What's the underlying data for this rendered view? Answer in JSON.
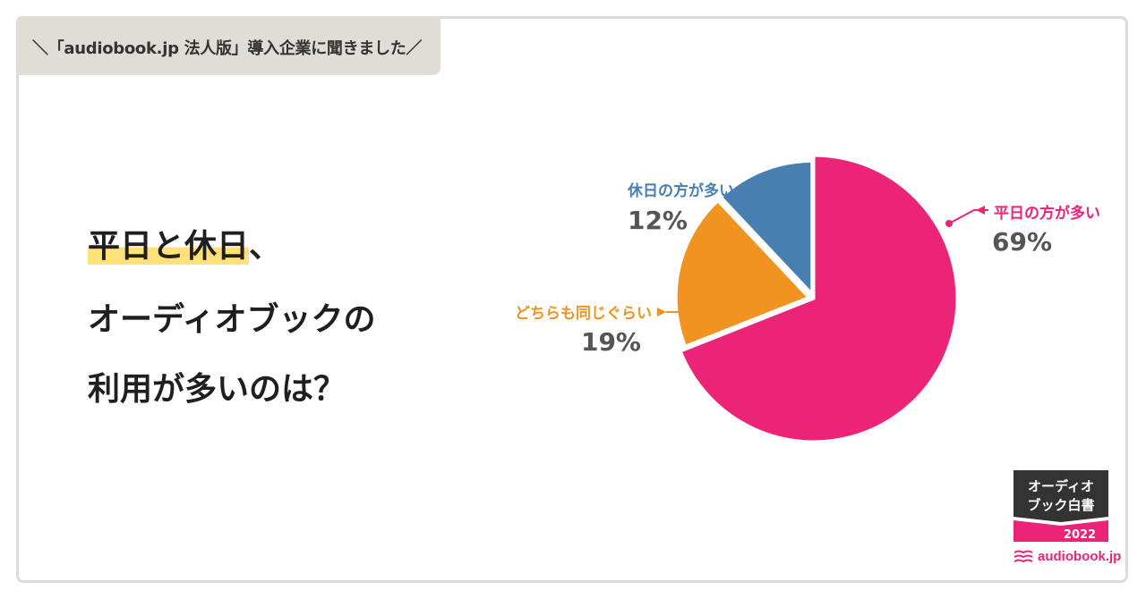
{
  "header_tag": "＼「audiobook.jp 法人版」導入企業に聞きました／",
  "question": {
    "line1_highlight": "平日と休日",
    "line1_rest": "、",
    "line2": "オーディオブックの",
    "line3": "利用が多いのは？"
  },
  "chart_data": {
    "type": "pie",
    "categories": [
      "平日の方が多い",
      "どちらも同じぐらい",
      "休日の方が多い"
    ],
    "values": [
      69,
      19,
      12
    ],
    "value_labels": [
      "69%",
      "19%",
      "12%"
    ],
    "colors": [
      "#ec2478",
      "#f09320",
      "#477fb0"
    ],
    "start_angle_deg": 0,
    "direction": "clockwise",
    "legend": "callout-labels"
  },
  "badge": {
    "line1": "オーディオ",
    "line2": "ブック白書",
    "year": "2022"
  },
  "logo_text": "audiobook.jp"
}
